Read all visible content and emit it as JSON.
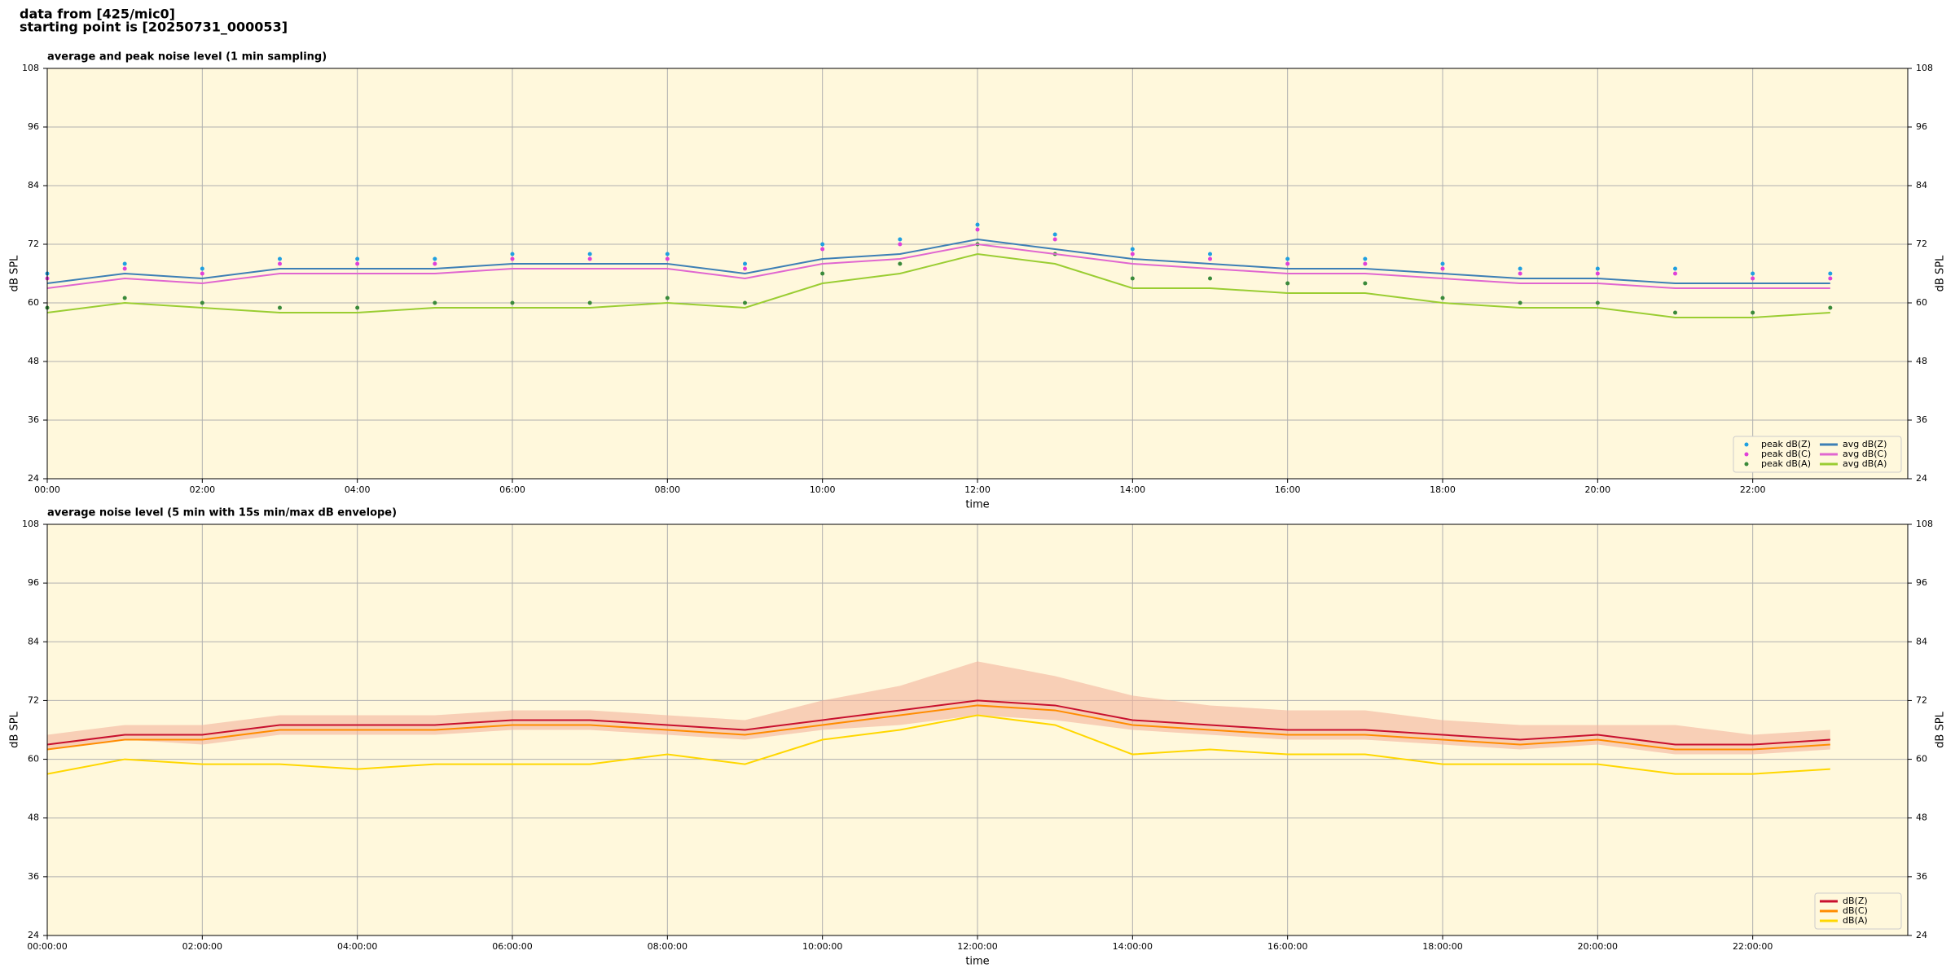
{
  "header": {
    "line1": "data from [425/mic0]",
    "line2": "starting point is [20250731_000053]"
  },
  "chart_data": [
    {
      "type": "line",
      "title": "average and peak noise level (1 min sampling)",
      "xlabel": "time",
      "ylabel": "dB SPL",
      "x": [
        0,
        1,
        2,
        3,
        4,
        5,
        6,
        7,
        8,
        9,
        10,
        11,
        12,
        13,
        14,
        15,
        16,
        17,
        18,
        19,
        20,
        21,
        22,
        23
      ],
      "xlim": [
        0,
        24
      ],
      "xticks": [
        {
          "value": 0,
          "label": "00:00"
        },
        {
          "value": 2,
          "label": "02:00"
        },
        {
          "value": 4,
          "label": "04:00"
        },
        {
          "value": 6,
          "label": "06:00"
        },
        {
          "value": 8,
          "label": "08:00"
        },
        {
          "value": 10,
          "label": "10:00"
        },
        {
          "value": 12,
          "label": "12:00"
        },
        {
          "value": 14,
          "label": "14:00"
        },
        {
          "value": 16,
          "label": "16:00"
        },
        {
          "value": 18,
          "label": "18:00"
        },
        {
          "value": 20,
          "label": "20:00"
        },
        {
          "value": 22,
          "label": "22:00"
        }
      ],
      "ylim": [
        24,
        108
      ],
      "yticks": [
        24,
        36,
        48,
        60,
        72,
        84,
        96,
        108
      ],
      "grid": true,
      "legend": "lower right",
      "legend_columns": 2,
      "series": [
        {
          "name": "peak dB(Z)",
          "color": "#1f9fe0",
          "marker": "dot",
          "values": [
            66,
            68,
            67,
            69,
            69,
            69,
            70,
            70,
            70,
            68,
            72,
            73,
            76,
            74,
            71,
            70,
            69,
            69,
            68,
            67,
            67,
            67,
            66,
            66
          ]
        },
        {
          "name": "peak dB(C)",
          "color": "#e040d8",
          "marker": "dot",
          "values": [
            65,
            67,
            66,
            68,
            68,
            68,
            69,
            69,
            69,
            67,
            71,
            72,
            75,
            73,
            70,
            69,
            68,
            68,
            67,
            66,
            66,
            66,
            65,
            65
          ]
        },
        {
          "name": "peak dB(A)",
          "color": "#3a8a3a",
          "marker": "dot",
          "values": [
            59,
            61,
            60,
            59,
            59,
            60,
            60,
            60,
            61,
            60,
            66,
            68,
            72,
            70,
            65,
            65,
            64,
            64,
            61,
            60,
            60,
            58,
            58,
            59
          ]
        },
        {
          "name": "avg dB(Z)",
          "color": "#3d7fb5",
          "marker": "line",
          "values": [
            64,
            66,
            65,
            67,
            67,
            67,
            68,
            68,
            68,
            66,
            69,
            70,
            73,
            71,
            69,
            68,
            67,
            67,
            66,
            65,
            65,
            64,
            64,
            64
          ]
        },
        {
          "name": "avg dB(C)",
          "color": "#e066d0",
          "marker": "line",
          "values": [
            63,
            65,
            64,
            66,
            66,
            66,
            67,
            67,
            67,
            65,
            68,
            69,
            72,
            70,
            68,
            67,
            66,
            66,
            65,
            64,
            64,
            63,
            63,
            63
          ]
        },
        {
          "name": "avg dB(A)",
          "color": "#9acd32",
          "marker": "line",
          "values": [
            58,
            60,
            59,
            58,
            58,
            59,
            59,
            59,
            60,
            59,
            64,
            66,
            70,
            68,
            63,
            63,
            62,
            62,
            60,
            59,
            59,
            57,
            57,
            58
          ]
        }
      ]
    },
    {
      "type": "line",
      "title": "average noise level (5 min with 15s min/max dB envelope)",
      "xlabel": "time",
      "ylabel": "dB SPL",
      "x": [
        0,
        1,
        2,
        3,
        4,
        5,
        6,
        7,
        8,
        9,
        10,
        11,
        12,
        13,
        14,
        15,
        16,
        17,
        18,
        19,
        20,
        21,
        22,
        23
      ],
      "xlim": [
        0,
        24
      ],
      "xticks": [
        {
          "value": 0,
          "label": "00:00:00"
        },
        {
          "value": 2,
          "label": "02:00:00"
        },
        {
          "value": 4,
          "label": "04:00:00"
        },
        {
          "value": 6,
          "label": "06:00:00"
        },
        {
          "value": 8,
          "label": "08:00:00"
        },
        {
          "value": 10,
          "label": "10:00:00"
        },
        {
          "value": 12,
          "label": "12:00:00"
        },
        {
          "value": 14,
          "label": "14:00:00"
        },
        {
          "value": 16,
          "label": "16:00:00"
        },
        {
          "value": 18,
          "label": "18:00:00"
        },
        {
          "value": 20,
          "label": "20:00:00"
        },
        {
          "value": 22,
          "label": "22:00:00"
        }
      ],
      "ylim": [
        24,
        108
      ],
      "yticks": [
        24,
        36,
        48,
        60,
        72,
        84,
        96,
        108
      ],
      "grid": true,
      "legend": "lower right",
      "legend_columns": 1,
      "envelope": {
        "color": "#f4b49c",
        "lower": [
          62,
          64,
          63,
          65,
          65,
          65,
          66,
          66,
          65,
          64,
          66,
          67,
          69,
          68,
          66,
          65,
          64,
          64,
          63,
          62,
          63,
          61,
          61,
          62
        ],
        "upper": [
          65,
          67,
          67,
          69,
          69,
          69,
          70,
          70,
          69,
          68,
          72,
          75,
          80,
          77,
          73,
          71,
          70,
          70,
          68,
          67,
          67,
          67,
          65,
          66
        ]
      },
      "series": [
        {
          "name": "dB(Z)",
          "color": "#c8102e",
          "marker": "line",
          "values": [
            63,
            65,
            65,
            67,
            67,
            67,
            68,
            68,
            67,
            66,
            68,
            70,
            72,
            71,
            68,
            67,
            66,
            66,
            65,
            64,
            65,
            63,
            63,
            64
          ]
        },
        {
          "name": "dB(C)",
          "color": "#ff8c00",
          "marker": "line",
          "values": [
            62,
            64,
            64,
            66,
            66,
            66,
            67,
            67,
            66,
            65,
            67,
            69,
            71,
            70,
            67,
            66,
            65,
            65,
            64,
            63,
            64,
            62,
            62,
            63
          ]
        },
        {
          "name": "dB(A)",
          "color": "#ffd700",
          "marker": "line",
          "values": [
            57,
            60,
            59,
            59,
            58,
            59,
            59,
            59,
            61,
            59,
            64,
            66,
            69,
            67,
            61,
            62,
            61,
            61,
            59,
            59,
            59,
            57,
            57,
            58
          ]
        }
      ]
    }
  ]
}
